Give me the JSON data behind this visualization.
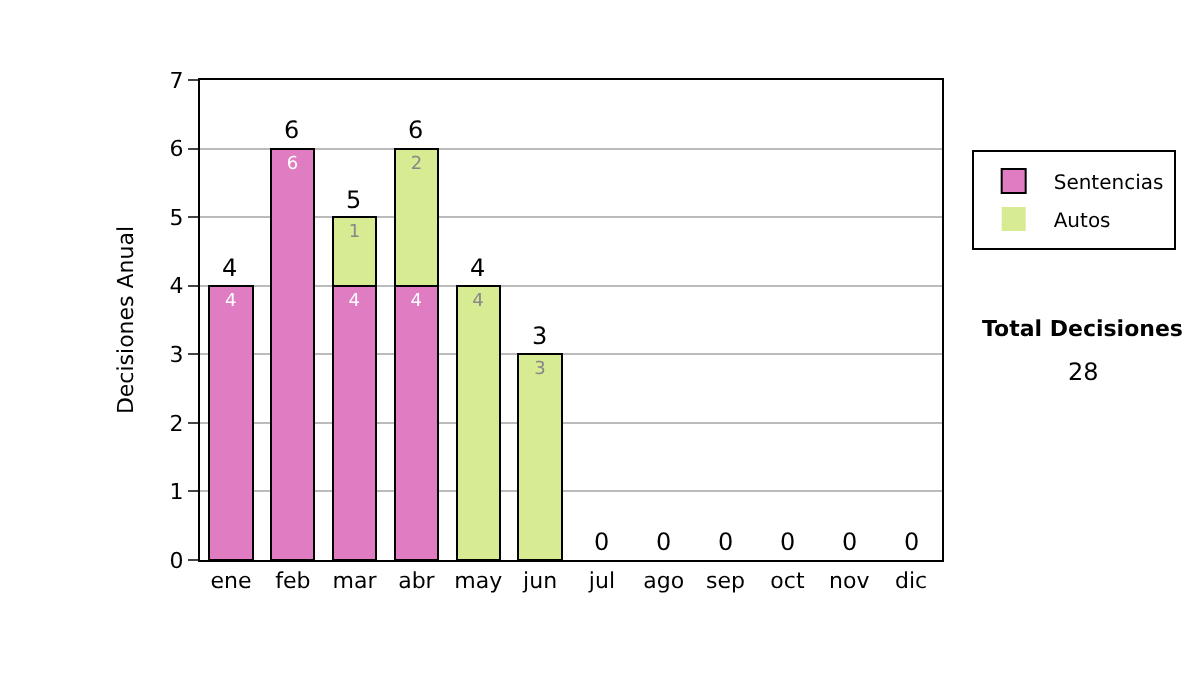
{
  "chart_data": {
    "type": "bar",
    "stacked": true,
    "ylabel": "Decisiones Anual",
    "categories": [
      "ene",
      "feb",
      "mar",
      "abr",
      "may",
      "jun",
      "jul",
      "ago",
      "sep",
      "oct",
      "nov",
      "dic"
    ],
    "series": [
      {
        "name": "Sentencias",
        "color": "#df7cc2",
        "values": [
          4,
          6,
          4,
          4,
          0,
          0,
          0,
          0,
          0,
          0,
          0,
          0
        ],
        "value_labels": [
          "4",
          "6",
          "4",
          "4",
          null,
          null,
          null,
          null,
          null,
          null,
          null,
          null
        ]
      },
      {
        "name": "Autos",
        "color": "#d6eb92",
        "values": [
          0,
          0,
          1,
          2,
          4,
          3,
          0,
          0,
          0,
          0,
          0,
          0
        ],
        "value_labels": [
          null,
          null,
          "1",
          "2",
          "4",
          "3",
          null,
          null,
          null,
          null,
          null,
          null
        ]
      }
    ],
    "totals": [
      "4",
      "6",
      "5",
      "6",
      "4",
      "3",
      "0",
      "0",
      "0",
      "0",
      "0",
      "0"
    ],
    "ylim": [
      0,
      7
    ],
    "yticks": [
      0,
      1,
      2,
      3,
      4,
      5,
      6,
      7
    ],
    "grid": "y",
    "legend": "right",
    "annotations": [
      "Total Decisiones",
      "28"
    ]
  }
}
